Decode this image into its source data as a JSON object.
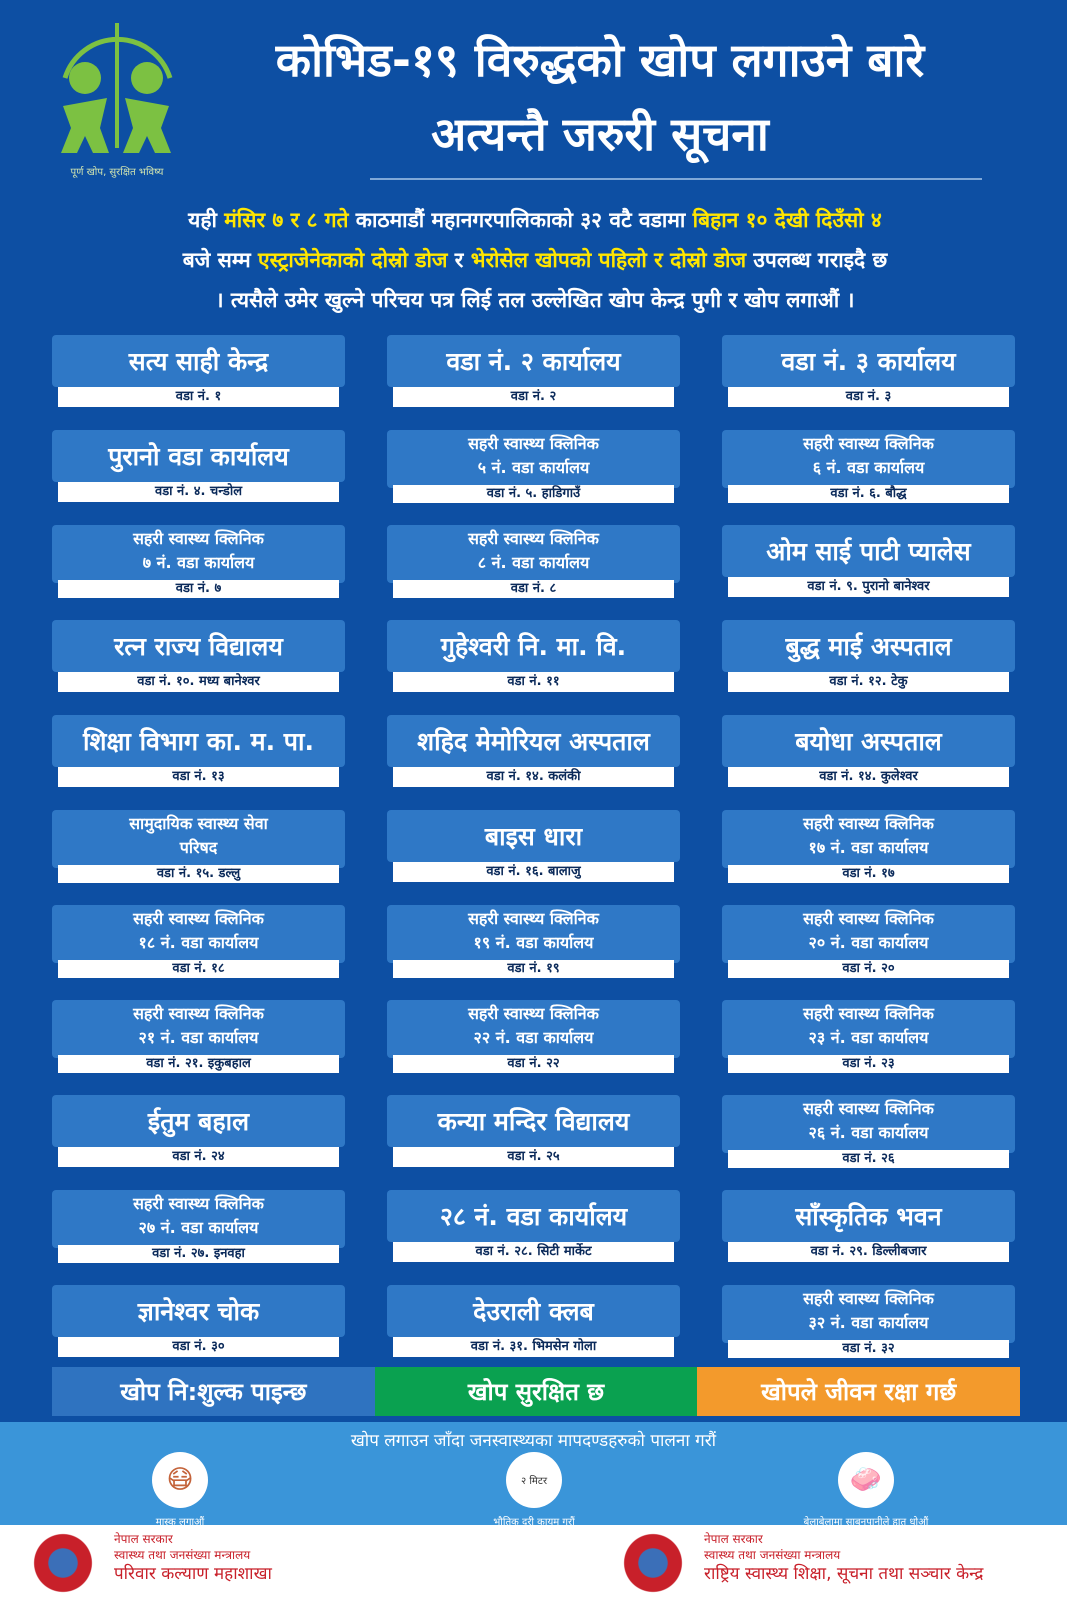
{
  "logo": {
    "caption": "पूर्ण खोप, सुरक्षित भविष्य"
  },
  "title": {
    "line1": "कोभिड-१९ विरुद्धको खोप लगाउने बारे",
    "line2": "अत्यन्तै जरुरी सूचना"
  },
  "intro": {
    "p1": "यही ",
    "y1": "मंसिर ७ र ८ गते",
    "p2": " काठमाडौं महानगरपालिकाको ३२ वटै वडामा ",
    "y2": "बिहान १० देखी दिउँसो ४",
    "p3": "बजे सम्म ",
    "y3": "एस्ट्राजेनेकाको दोस्रो डोज",
    "p4": " र ",
    "y4": "भेरोसेल खोपको पहिलो र दोस्रो डोज",
    "p5": " उपलब्ध गराइदै छ",
    "p6": "। त्यसैले उमेर खुल्ने परिचय पत्र लिई तल उल्लेखित खोप केन्द्र पुगी र खोप लगाऔं ।"
  },
  "centers": [
    {
      "l1": "सत्य साही केन्द्र",
      "sub": "वडा नं. १"
    },
    {
      "l1": "वडा नं. २ कार्यालय",
      "sub": "वडा नं. २"
    },
    {
      "l1": "वडा नं. ३ कार्यालय",
      "sub": "वडा नं. ३"
    },
    {
      "l1": "पुरानो वडा कार्यालय",
      "sub": "वडा नं. ४. चन्डोल"
    },
    {
      "l1": "सहरी स्वास्थ्य क्लिनिक",
      "l2": "५ नं. वडा कार्यालय",
      "sub": "वडा नं. ५. हाडिगाउँ"
    },
    {
      "l1": "सहरी स्वास्थ्य क्लिनिक",
      "l2": "६ नं. वडा कार्यालय",
      "sub": "वडा नं. ६. बौद्ध"
    },
    {
      "l1": "सहरी स्वास्थ्य क्लिनिक",
      "l2": "७ नं. वडा कार्यालय",
      "sub": "वडा नं. ७"
    },
    {
      "l1": "सहरी स्वास्थ्य क्लिनिक",
      "l2": "८ नं. वडा कार्यालय",
      "sub": "वडा नं. ८"
    },
    {
      "l1": "ओम साई पाटी प्यालेस",
      "sub": "वडा नं. ९. पुरानो बानेश्वर"
    },
    {
      "l1": "रत्न राज्य विद्यालय",
      "sub": "वडा नं. १०. मध्य बानेश्वर"
    },
    {
      "l1": "गुहेश्वरी नि. मा. वि.",
      "sub": "वडा नं. ११"
    },
    {
      "l1": "बुद्ध माई अस्पताल",
      "sub": "वडा नं. १२. टेकु"
    },
    {
      "l1": "शिक्षा विभाग का. म. पा.",
      "sub": "वडा नं. १३"
    },
    {
      "l1": "शहिद मेमोरियल अस्पताल",
      "sub": "वडा नं. १४. कलंकी"
    },
    {
      "l1": "बयोधा अस्पताल",
      "sub": "वडा नं. १४. कुलेश्वर"
    },
    {
      "l1": "सामुदायिक स्वास्थ्य सेवा",
      "l2": "परिषद",
      "sub": "वडा नं. १५. डल्लु"
    },
    {
      "l1": "बाइस धारा",
      "sub": "वडा नं. १६. बालाजु"
    },
    {
      "l1": "सहरी स्वास्थ्य क्लिनिक",
      "l2": "१७ नं. वडा कार्यालय",
      "sub": "वडा नं. १७"
    },
    {
      "l1": "सहरी स्वास्थ्य क्लिनिक",
      "l2": "१८ नं. वडा कार्यालय",
      "sub": "वडा नं. १८"
    },
    {
      "l1": "सहरी स्वास्थ्य क्लिनिक",
      "l2": "१९ नं. वडा कार्यालय",
      "sub": "वडा नं. १९"
    },
    {
      "l1": "सहरी स्वास्थ्य क्लिनिक",
      "l2": "२० नं. वडा कार्यालय",
      "sub": "वडा नं. २०"
    },
    {
      "l1": "सहरी स्वास्थ्य क्लिनिक",
      "l2": "२१ नं. वडा कार्यालय",
      "sub": "वडा नं. २१. इकुबहाल"
    },
    {
      "l1": "सहरी स्वास्थ्य क्लिनिक",
      "l2": "२२ नं. वडा कार्यालय",
      "sub": "वडा नं. २२"
    },
    {
      "l1": "सहरी स्वास्थ्य क्लिनिक",
      "l2": "२३ नं. वडा कार्यालय",
      "sub": "वडा नं. २३"
    },
    {
      "l1": "ईतुम बहाल",
      "sub": "वडा नं. २४"
    },
    {
      "l1": "कन्या मन्दिर विद्यालय",
      "sub": "वडा नं. २५"
    },
    {
      "l1": "सहरी स्वास्थ्य क्लिनिक",
      "l2": "२६ नं. वडा कार्यालय",
      "sub": "वडा नं. २६"
    },
    {
      "l1": "सहरी स्वास्थ्य क्लिनिक",
      "l2": "२७ नं. वडा कार्यालय",
      "sub": "वडा नं. २७. इनवहा"
    },
    {
      "l1": "२८ नं. वडा कार्यालय",
      "sub": "वडा नं. २८. सिटी मार्केट"
    },
    {
      "l1": "साँस्कृतिक भवन",
      "sub": "वडा नं. २९. डिल्लीबजार"
    },
    {
      "l1": "ज्ञानेश्वर चोक",
      "sub": "वडा नं. ३०"
    },
    {
      "l1": "देउराली क्लब",
      "sub": "वडा नं. ३१. भिमसेन गोला"
    },
    {
      "l1": "सहरी स्वास्थ्य क्लिनिक",
      "l2": "३२ नं. वडा कार्यालय",
      "sub": "वडा नं. ३२"
    }
  ],
  "slogans": [
    {
      "text": "खोप नि:शुल्क पाइन्छ",
      "color": "#2f73c0"
    },
    {
      "text": "खोप सुरक्षित छ",
      "color": "#0aa150"
    },
    {
      "text": "खोपले जीवन रक्षा गर्छ",
      "color": "#f39a2c"
    }
  ],
  "guidelines": {
    "title": "खोप लगाउन जाँदा जनस्वास्थ्यका मापदण्डहरुको पालना गरौं",
    "tips": [
      {
        "icon": "mask-icon",
        "label": "मास्क लगाऔं"
      },
      {
        "icon": "distance-icon",
        "label": "भौतिक दूरी कायम गरौं",
        "badge": "२ मिटर"
      },
      {
        "icon": "handwash-icon",
        "label": "बेलाबेलामा साबुनपानीले हात धोऔं"
      }
    ]
  },
  "footer": [
    {
      "l1": "नेपाल सरकार",
      "l2": "स्वास्थ्य तथा जनसंख्या मन्त्रालय",
      "l3": "परिवार कल्याण महाशाखा"
    },
    {
      "l1": "नेपाल सरकार",
      "l2": "स्वास्थ्य तथा जनसंख्या मन्त्रालय",
      "l3": "राष्ट्रिय स्वास्थ्य शिक्षा, सूचना तथा सञ्चार केन्द्र"
    }
  ]
}
